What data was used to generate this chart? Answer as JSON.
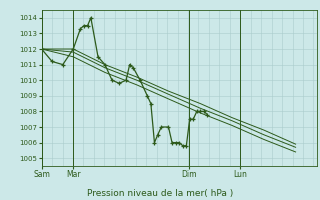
{
  "background_color": "#cce8e8",
  "grid_color": "#aacccc",
  "line_color": "#2d5a1b",
  "ylim": [
    1004.5,
    1014.5
  ],
  "yticks": [
    1005,
    1006,
    1007,
    1008,
    1009,
    1010,
    1011,
    1012,
    1013,
    1014
  ],
  "xlabel": "Pression niveau de la mer( hPa )",
  "day_labels": [
    "Sam",
    "Mar",
    "Dim",
    "Lun"
  ],
  "day_positions": [
    0.0,
    0.115,
    0.535,
    0.72
  ],
  "xlim": [
    0.0,
    1.0
  ],
  "series1_x": [
    0.0,
    0.038,
    0.077,
    0.115,
    0.141,
    0.154,
    0.167,
    0.179,
    0.205,
    0.23,
    0.256,
    0.282,
    0.307,
    0.32,
    0.333,
    0.358,
    0.384,
    0.397,
    0.41,
    0.422,
    0.435,
    0.461,
    0.474,
    0.487,
    0.5,
    0.513,
    0.526,
    0.538,
    0.551,
    0.564,
    0.577,
    0.59,
    0.602
  ],
  "series1_y": [
    1012.0,
    1011.2,
    1011.0,
    1012.0,
    1013.3,
    1013.5,
    1013.5,
    1014.0,
    1011.5,
    1011.0,
    1010.0,
    1009.8,
    1010.0,
    1011.0,
    1010.8,
    1010.0,
    1009.0,
    1008.5,
    1006.0,
    1006.5,
    1007.0,
    1007.0,
    1006.0,
    1006.0,
    1006.0,
    1005.8,
    1005.8,
    1007.5,
    1007.5,
    1008.0,
    1008.0,
    1008.0,
    1007.8
  ],
  "series2_x": [
    0.0,
    0.115,
    0.23,
    0.346,
    0.461,
    0.577,
    0.692,
    0.808,
    0.923
  ],
  "series2_y": [
    1012.0,
    1012.0,
    1011.0,
    1010.2,
    1009.3,
    1008.5,
    1007.6,
    1006.8,
    1005.9
  ],
  "series3_x": [
    0.0,
    0.115,
    0.23,
    0.346,
    0.461,
    0.577,
    0.692,
    0.808,
    0.923
  ],
  "series3_y": [
    1012.0,
    1011.8,
    1010.8,
    1010.0,
    1009.1,
    1008.2,
    1007.4,
    1006.5,
    1005.7
  ],
  "series4_x": [
    0.0,
    0.115,
    0.23,
    0.346,
    0.461,
    0.577,
    0.692,
    0.808,
    0.923
  ],
  "series4_y": [
    1012.0,
    1011.5,
    1010.5,
    1009.7,
    1008.8,
    1007.9,
    1007.1,
    1006.2,
    1005.4
  ]
}
